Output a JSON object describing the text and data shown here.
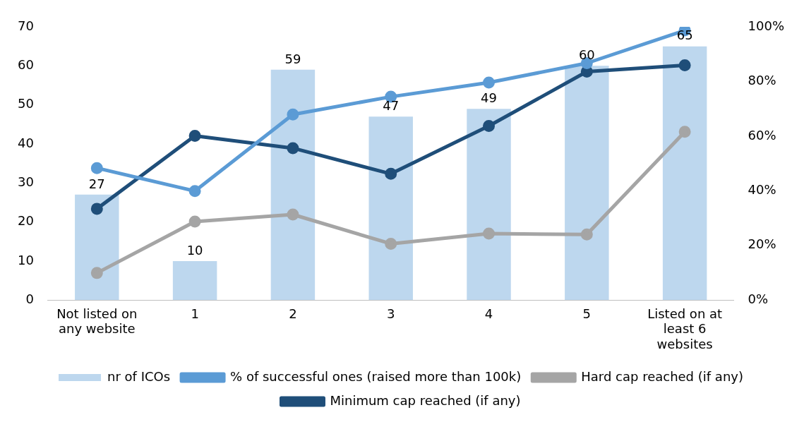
{
  "chart_data": {
    "type": "bar",
    "categories": [
      "Not listed on any website",
      "1",
      "2",
      "3",
      "4",
      "5",
      "Listed on at least 6 websites"
    ],
    "series": [
      {
        "name": "nr of ICOs",
        "color": "#bdd7ee",
        "values": [
          27,
          10,
          59,
          47,
          49,
          60,
          65
        ],
        "data_labels": true
      },
      {
        "name": "% of successful ones (raised more than 100k)",
        "type": "line",
        "axis": "y2",
        "color": "#5b9bd5",
        "values": [
          48.3,
          39.9,
          67.9,
          74.4,
          79.6,
          86.7,
          98.7
        ]
      },
      {
        "name": "Hard cap reached (if any)",
        "type": "line",
        "axis": "y2",
        "color": "#a5a5a5",
        "values": [
          9.9,
          28.7,
          31.3,
          20.6,
          24.3,
          24.0,
          61.6
        ]
      },
      {
        "name": "Minimum cap reached (if any)",
        "type": "line",
        "axis": "y2",
        "color": "#1f4e79",
        "values": [
          33.4,
          60.1,
          55.6,
          46.2,
          63.7,
          83.6,
          85.9
        ]
      }
    ],
    "ylim": [
      0,
      70
    ],
    "yticks": [
      0,
      10,
      20,
      30,
      40,
      50,
      60,
      70
    ],
    "y2lim": [
      0,
      100
    ],
    "y2ticks": [
      {
        "value": 0,
        "label": "0%"
      },
      {
        "value": 20,
        "label": "20%"
      },
      {
        "value": 40,
        "label": "40%"
      },
      {
        "value": 60,
        "label": "60%"
      },
      {
        "value": 80,
        "label": "80%"
      },
      {
        "value": 100,
        "label": "100%"
      }
    ],
    "grid": false,
    "legend": "bottom",
    "marker": "circle",
    "line_style": "solid"
  }
}
